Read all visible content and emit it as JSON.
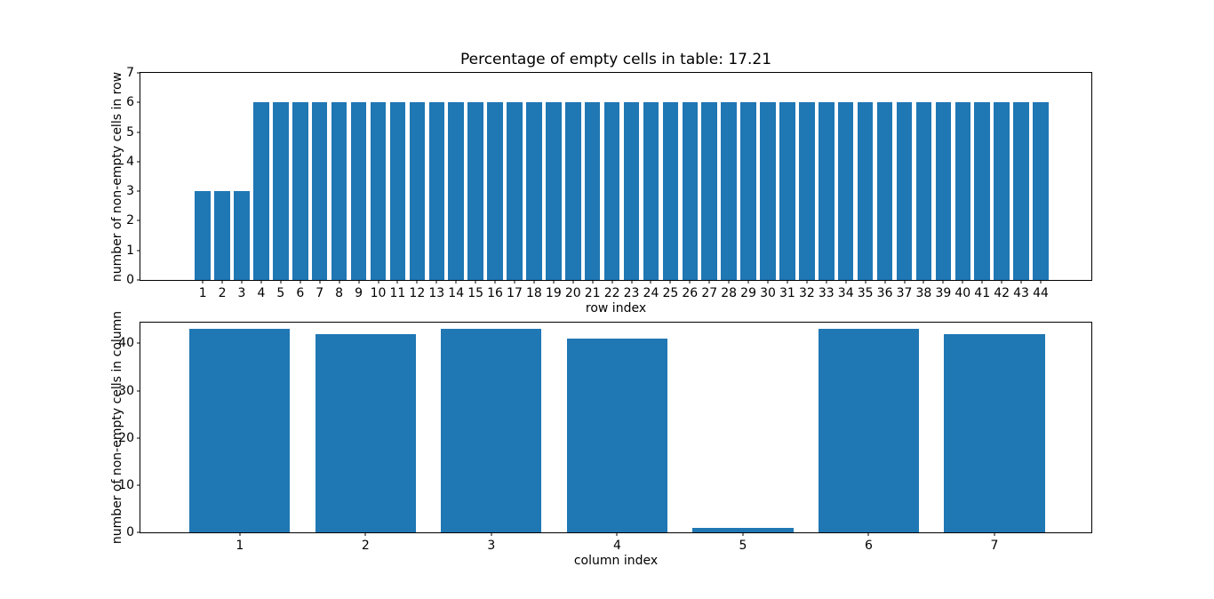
{
  "figure_title": "Percentage of empty cells in table: 17.21",
  "accent_color": "#1f77b4",
  "chart_data": [
    {
      "type": "bar",
      "title": "Percentage of empty cells in table: 17.21",
      "xlabel": "row index",
      "ylabel": "number of non-empty cells in row",
      "categories": [
        1,
        2,
        3,
        4,
        5,
        6,
        7,
        8,
        9,
        10,
        11,
        12,
        13,
        14,
        15,
        16,
        17,
        18,
        19,
        20,
        21,
        22,
        23,
        24,
        25,
        26,
        27,
        28,
        29,
        30,
        31,
        32,
        33,
        34,
        35,
        36,
        37,
        38,
        39,
        40,
        41,
        42,
        43,
        44
      ],
      "values": [
        3,
        3,
        3,
        6,
        6,
        6,
        6,
        6,
        6,
        6,
        6,
        6,
        6,
        6,
        6,
        6,
        6,
        6,
        6,
        6,
        6,
        6,
        6,
        6,
        6,
        6,
        6,
        6,
        6,
        6,
        6,
        6,
        6,
        6,
        6,
        6,
        6,
        6,
        6,
        6,
        6,
        6,
        6,
        6
      ],
      "yticks": [
        0,
        1,
        2,
        3,
        4,
        5,
        6,
        7
      ],
      "ylim": [
        0,
        7
      ],
      "xlim": [
        -2.2,
        46.6
      ],
      "bar_width": 0.8,
      "bar_color": "#1f77b4",
      "grid": false,
      "legend": null
    },
    {
      "type": "bar",
      "title": "",
      "xlabel": "column index",
      "ylabel": "number of non-empty cells in column",
      "categories": [
        1,
        2,
        3,
        4,
        5,
        6,
        7
      ],
      "values": [
        43,
        42,
        43,
        41,
        1,
        43,
        42
      ],
      "yticks": [
        0,
        10,
        20,
        30,
        40
      ],
      "ylim": [
        0,
        44.4
      ],
      "xlim": [
        0.21,
        7.77
      ],
      "bar_width": 0.8,
      "bar_color": "#1f77b4",
      "grid": false,
      "legend": null
    }
  ]
}
